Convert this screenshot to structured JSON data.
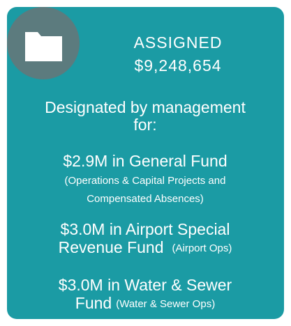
{
  "header": {
    "title": "ASSIGNED",
    "amount": "$9,248,654"
  },
  "description": [
    "Designated by management",
    "for:"
  ],
  "items": [
    {
      "heading": [
        "$2.9M in General Fund"
      ],
      "note": [
        "(Operations & Capital Projects and",
        "Compensated Absences)"
      ]
    },
    {
      "heading": [
        "$3.0M in Airport Special",
        "Revenue Fund"
      ],
      "note": [
        "(Airport Ops)"
      ]
    },
    {
      "heading": [
        "$3.0M in Water & Sewer",
        "Fund"
      ],
      "note": [
        "(Water & Sewer Ops)"
      ]
    }
  ]
}
